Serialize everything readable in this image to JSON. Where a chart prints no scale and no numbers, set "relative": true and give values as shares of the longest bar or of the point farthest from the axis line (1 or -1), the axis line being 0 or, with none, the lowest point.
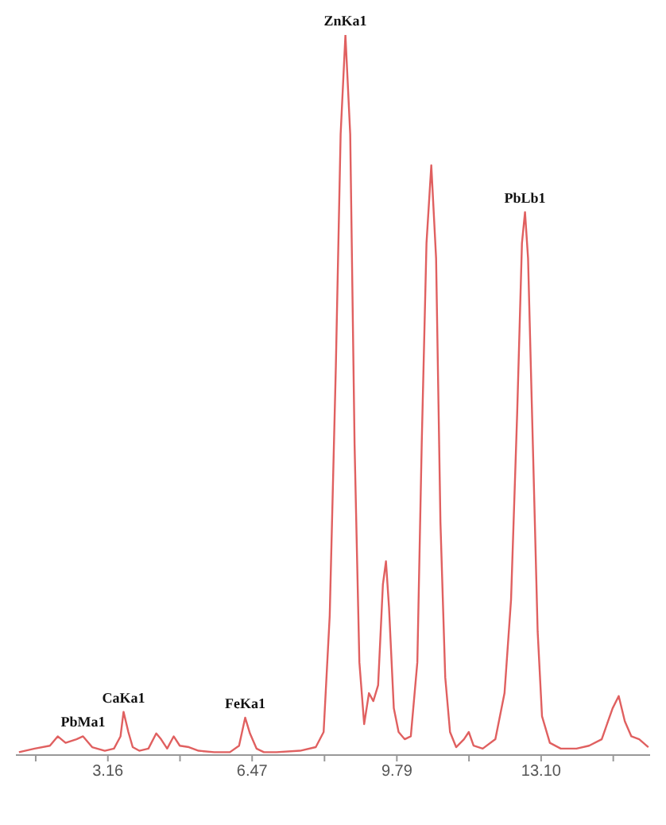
{
  "chart_data": {
    "type": "line",
    "relative": true,
    "x": [
      1.12,
      1.48,
      1.83,
      2.01,
      2.19,
      2.44,
      2.59,
      2.8,
      3.09,
      3.3,
      3.45,
      3.52,
      3.63,
      3.73,
      3.88,
      4.09,
      4.27,
      4.38,
      4.52,
      4.67,
      4.81,
      5.02,
      5.24,
      5.6,
      5.96,
      6.17,
      6.31,
      6.42,
      6.57,
      6.74,
      7.03,
      7.57,
      7.93,
      8.11,
      8.25,
      8.39,
      8.5,
      8.61,
      8.72,
      8.82,
      8.93,
      9.04,
      9.15,
      9.25,
      9.36,
      9.47,
      9.54,
      9.61,
      9.72,
      9.83,
      9.97,
      10.11,
      10.26,
      10.36,
      10.47,
      10.58,
      10.69,
      10.79,
      10.9,
      11.01,
      11.15,
      11.33,
      11.44,
      11.55,
      11.76,
      12.05,
      12.26,
      12.41,
      12.55,
      12.66,
      12.73,
      12.8,
      12.91,
      13.02,
      13.12,
      13.3,
      13.55,
      13.91,
      14.2,
      14.49,
      14.74,
      14.88,
      15.02,
      15.17,
      15.35,
      15.56
    ],
    "series": [
      {
        "color": "#e06060",
        "values": [
          0.004,
          0.009,
          0.013,
          0.026,
          0.017,
          0.022,
          0.026,
          0.011,
          0.006,
          0.009,
          0.026,
          0.06,
          0.032,
          0.011,
          0.006,
          0.009,
          0.03,
          0.022,
          0.009,
          0.026,
          0.013,
          0.011,
          0.006,
          0.004,
          0.004,
          0.013,
          0.052,
          0.03,
          0.009,
          0.004,
          0.004,
          0.006,
          0.011,
          0.032,
          0.194,
          0.539,
          0.862,
          1,
          0.862,
          0.431,
          0.129,
          0.043,
          0.086,
          0.075,
          0.097,
          0.237,
          0.269,
          0.205,
          0.065,
          0.032,
          0.022,
          0.026,
          0.129,
          0.431,
          0.711,
          0.819,
          0.69,
          0.323,
          0.108,
          0.032,
          0.011,
          0.022,
          0.032,
          0.013,
          0.009,
          0.022,
          0.086,
          0.216,
          0.474,
          0.711,
          0.754,
          0.69,
          0.431,
          0.172,
          0.054,
          0.017,
          0.009,
          0.009,
          0.013,
          0.022,
          0.065,
          0.082,
          0.047,
          0.026,
          0.022,
          0.011
        ]
      }
    ],
    "xlim": [
      1.05,
      15.6
    ],
    "xticks": [
      {
        "value": 1.505,
        "label": null
      },
      3.16,
      {
        "value": 4.815,
        "label": null
      },
      6.47,
      {
        "value": 8.13,
        "label": null
      },
      9.79,
      {
        "value": 11.445,
        "label": null
      },
      {
        "value": 13.1,
        "label": "13.10"
      },
      {
        "value": 14.755,
        "label": null
      }
    ],
    "annotations": [
      {
        "text": "PbMa1",
        "x": 2.59,
        "y": 0.026
      },
      {
        "text": "CaKa1",
        "x": 3.52,
        "y": 0.06
      },
      {
        "text": "FeKa1",
        "x": 6.31,
        "y": 0.052
      },
      {
        "text": "ZnKa1",
        "x": 8.61,
        "y": 1
      },
      {
        "text": "PbLb1",
        "x": 12.73,
        "y": 0.754
      }
    ],
    "marker": "none",
    "line_style": "solid",
    "grid": false,
    "legend": false
  }
}
